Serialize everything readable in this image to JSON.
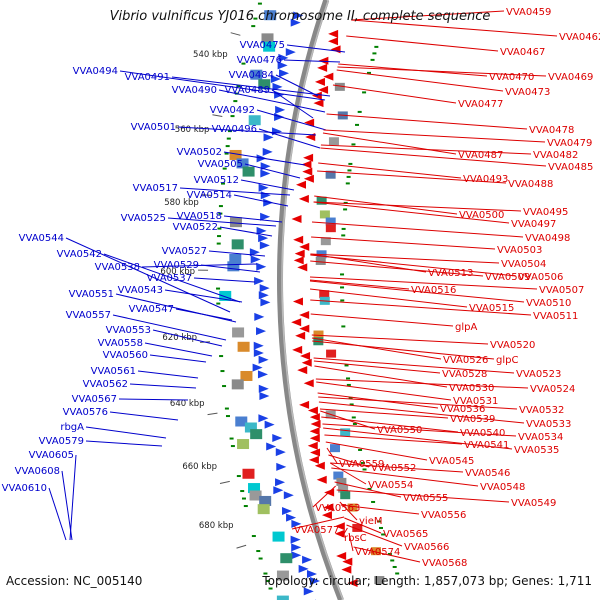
{
  "title": "Vibrio vulnificus YJ016 chromosome II, complete sequence",
  "accession": "Accession: NC_005140",
  "summary": "Topology: circular; Length: 1,857,073 bp; Genes: 1,711",
  "colors": {
    "forward_label": "#0000cc",
    "reverse_label": "#dd0000",
    "forward_gene": "#1a40e6",
    "reverse_gene": "#e60000",
    "backbone": "#888888",
    "tick": "#008000"
  },
  "kbp_ticks": [
    "540 kbp",
    "560 kbp",
    "580 kbp",
    "600 kbp",
    "620 kbp",
    "640 kbp",
    "660 kbp",
    "680 kbp"
  ],
  "forward_genes": [
    "VVA0475",
    "VVA0476",
    "VVA0494",
    "VVA0491",
    "VVA0484",
    "VVA0490",
    "VVA0489",
    "VVA0492",
    "VVA0501",
    "VVA0496",
    "VVA0502",
    "VVA0505",
    "VVA0512",
    "VVA0517",
    "VVA0514",
    "VVA0518",
    "VVA0525",
    "VVA0522",
    "VVA0544",
    "VVA0542",
    "VVA0527",
    "VVA0538",
    "VVA0529",
    "VVA0537",
    "VVA0543",
    "VVA0551",
    "VVA0547",
    "VVA0557",
    "VVA0553",
    "VVA0558",
    "VVA0560",
    "VVA0561",
    "VVA0562",
    "VVA0567",
    "VVA0576",
    "rbgA",
    "VVA0579",
    "VVA0605",
    "VVA0608",
    "VVA0610"
  ],
  "reverse_genes": [
    "VVA0459",
    "VVA0462",
    "VVA0467",
    "VVA0470",
    "VVA0469",
    "VVA0473",
    "VVA0477",
    "VVA0478",
    "VVA0479",
    "VVA0482",
    "VVA0487",
    "VVA0485",
    "VVA0493",
    "VVA0488",
    "VVA0495",
    "VVA0497",
    "VVA0500",
    "VVA0498",
    "VVA0503",
    "VVA0504",
    "VVA0506",
    "VVA0513",
    "VVA0509",
    "VVA0507",
    "VVA0516",
    "VVA0510",
    "VVA0515",
    "VVA0511",
    "glpA",
    "VVA0520",
    "VVA0526",
    "glpC",
    "VVA0523",
    "VVA0528",
    "VVA0524",
    "VVA0530",
    "VVA0531",
    "VVA0536",
    "VVA0532",
    "VVA0539",
    "VVA0533",
    "VVA0550",
    "VVA0540",
    "VVA0534",
    "VVA0541",
    "VVA0535",
    "VVA0545",
    "VVA0559",
    "VVA0552",
    "VVA0546",
    "VVA0554",
    "VVA0548",
    "VVA0555",
    "VVA0549",
    "VVA0556",
    "VVA0563",
    "yieM",
    "VVA0565",
    "VVA0577",
    "rbsC",
    "VVA0566",
    "VVA0574",
    "VVA0568"
  ]
}
